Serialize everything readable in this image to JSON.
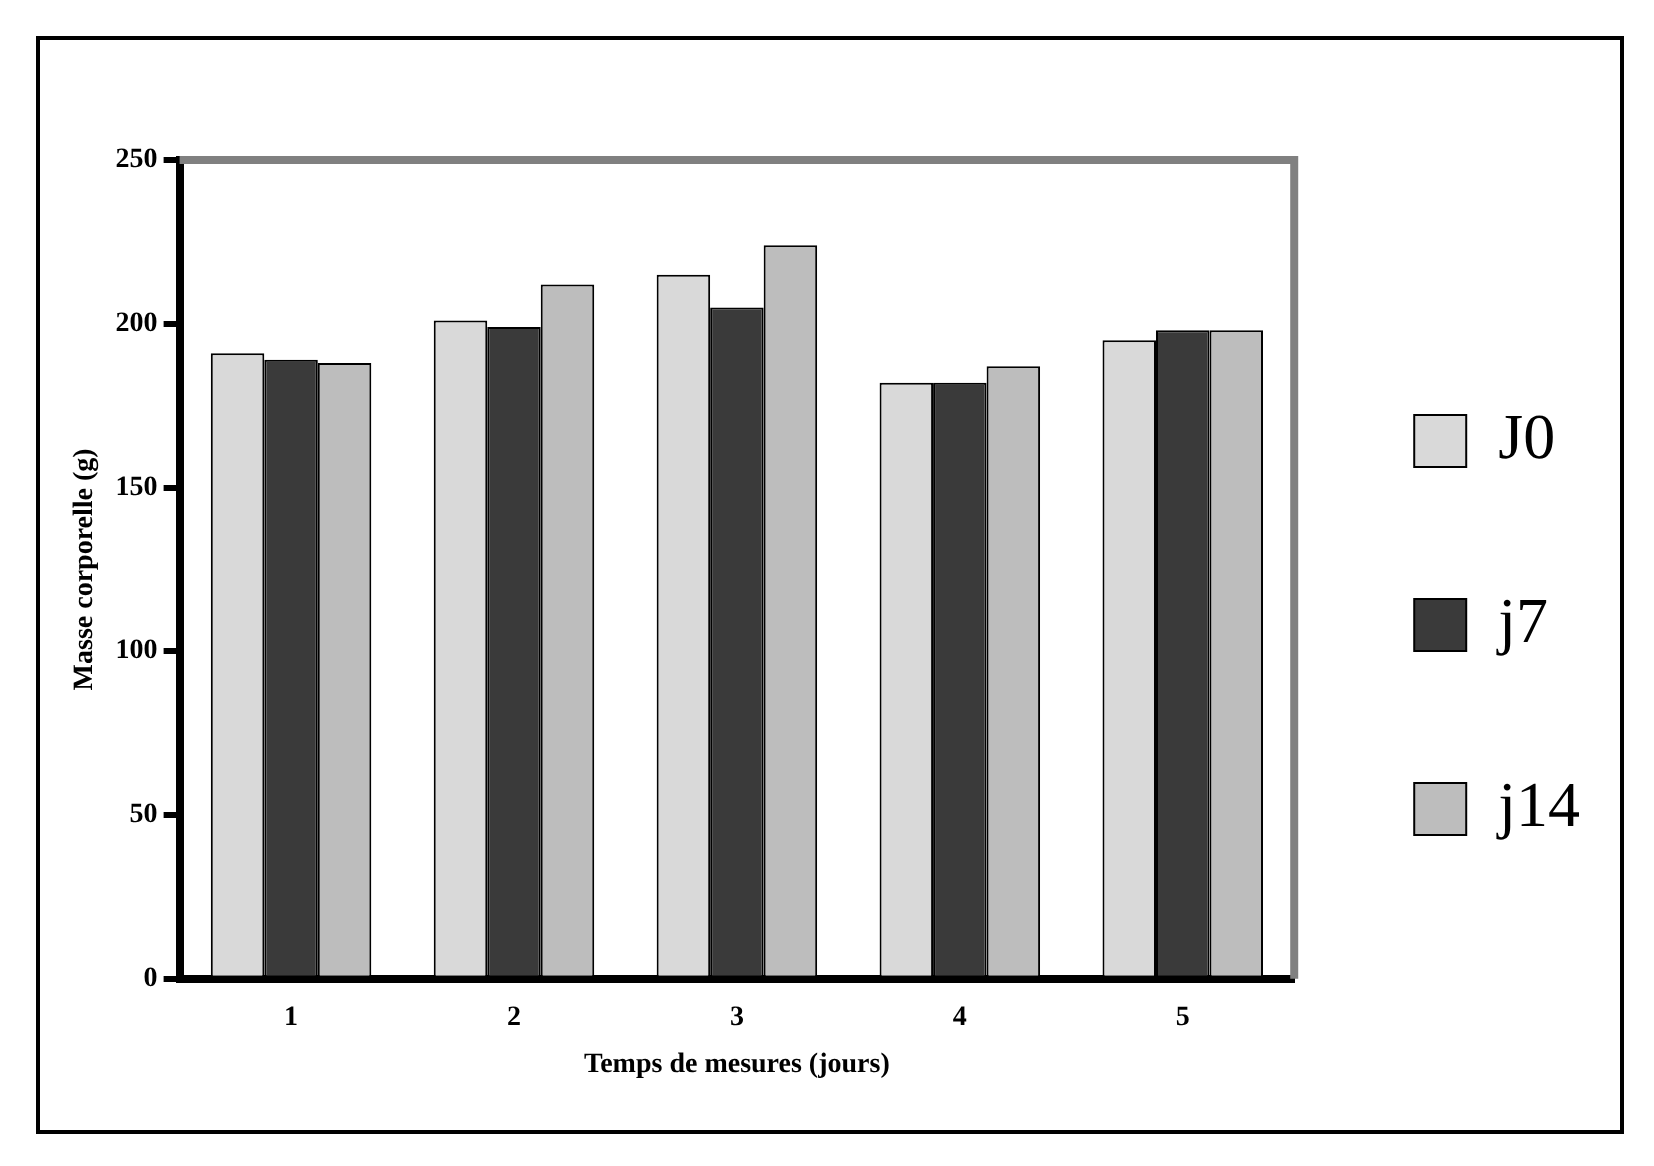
{
  "chart_data": {
    "type": "bar",
    "xlabel": "Temps de mesures (jours)",
    "ylabel": "Masse corporelle (g)",
    "categories": [
      "1",
      "2",
      "3",
      "4",
      "5"
    ],
    "series": [
      {
        "name": "J0",
        "color": "#d9d9d9",
        "values": [
          191,
          201,
          215,
          182,
          195
        ]
      },
      {
        "name": "j7",
        "color": "#3a3a3a",
        "values": [
          189,
          199,
          205,
          182,
          198
        ]
      },
      {
        "name": "j14",
        "color": "#bdbdbd",
        "values": [
          188,
          212,
          224,
          187,
          198
        ]
      }
    ],
    "ylim": [
      0,
      250
    ],
    "yticks": [
      0,
      50,
      100,
      150,
      200,
      250
    ],
    "grid": false,
    "legend": "right"
  }
}
